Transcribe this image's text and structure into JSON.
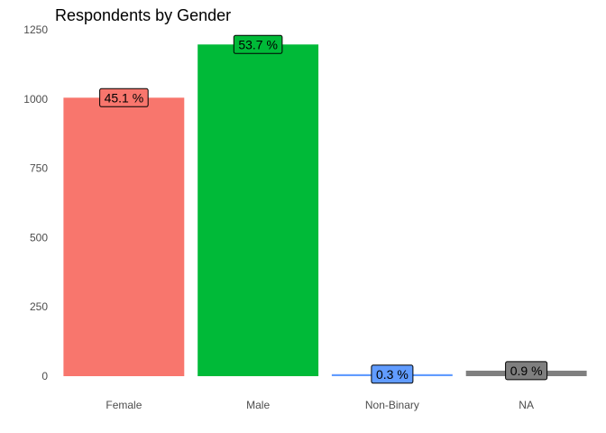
{
  "chart_data": {
    "type": "bar",
    "title": "Respondents by Gender",
    "xlabel": "",
    "ylabel": "",
    "categories": [
      "Female",
      "Male",
      "Non-Binary",
      "NA"
    ],
    "values": [
      1005,
      1197,
      7,
      20
    ],
    "labels": [
      "45.1 %",
      "53.7 %",
      "0.3 %",
      "0.9 %"
    ],
    "colors": [
      "#F8766D",
      "#00BA38",
      "#619CFF",
      "#7F7F7F"
    ],
    "ylim": [
      0,
      1250
    ],
    "yticks": [
      0,
      250,
      500,
      750,
      1000,
      1250
    ],
    "grid": false,
    "legend": "none"
  }
}
